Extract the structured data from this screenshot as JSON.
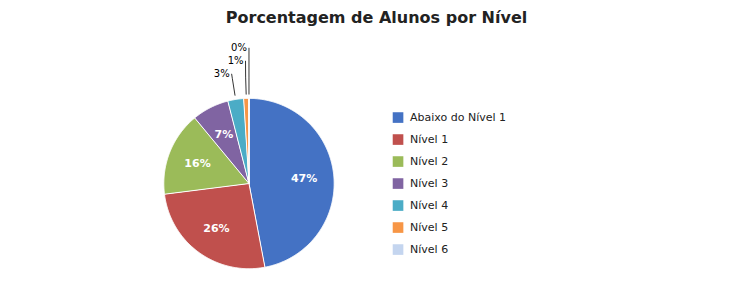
{
  "chart_data": {
    "type": "pie",
    "title": "Porcentagem de Alunos por Nível",
    "categories": [
      "Abaixo do Nível 1",
      "Nível 1",
      "Nível 2",
      "Nível 3",
      "Nível 4",
      "Nível 5",
      "Nível 6"
    ],
    "values": [
      47,
      26,
      16,
      7,
      3,
      1,
      0
    ],
    "value_labels": [
      "47%",
      "26%",
      "16%",
      "7%",
      "3%",
      "1%",
      "0%"
    ],
    "colors": [
      "#4472C4",
      "#C0504D",
      "#9BBB59",
      "#8064A2",
      "#4BACC6",
      "#F79646",
      "#C4D5EF"
    ],
    "data_labels": true,
    "legend": "right"
  }
}
